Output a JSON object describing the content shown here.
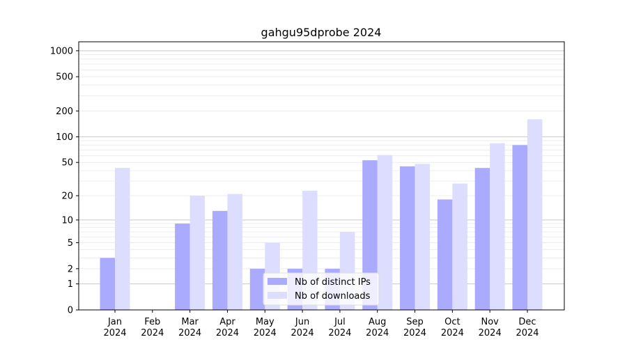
{
  "chart_data": {
    "type": "bar",
    "title": "gahgu95dprobe 2024",
    "xlabel": "",
    "ylabel": "",
    "yscale": "symlog",
    "ylim": [
      0,
      1270
    ],
    "yticks": [
      0,
      1,
      2,
      5,
      10,
      20,
      50,
      100,
      200,
      500,
      1000
    ],
    "grid": true,
    "legend_position": "bottom-center",
    "categories": [
      "Jan\n2024",
      "Feb\n2024",
      "Mar\n2024",
      "Apr\n2024",
      "May\n2024",
      "Jun\n2024",
      "Jul\n2024",
      "Aug\n2024",
      "Sep\n2024",
      "Oct\n2024",
      "Nov\n2024",
      "Dec\n2024"
    ],
    "series": [
      {
        "name": "Nb of distinct IPs",
        "color": "#aaaaff",
        "values": [
          3,
          0,
          9,
          13,
          2,
          2,
          2,
          53,
          45,
          18,
          43,
          80
        ]
      },
      {
        "name": "Nb of downloads",
        "color": "#ddddff",
        "values": [
          43,
          0,
          20,
          21,
          5,
          23,
          7,
          61,
          48,
          28,
          84,
          160
        ]
      }
    ]
  }
}
